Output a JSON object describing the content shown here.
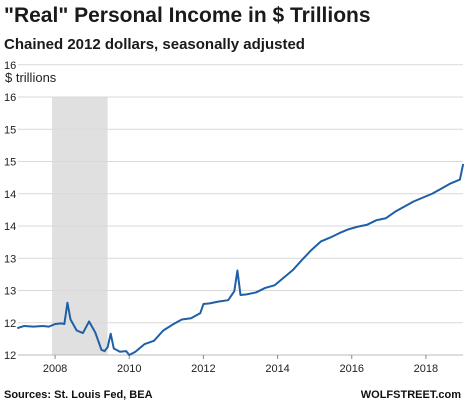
{
  "chart_data": {
    "type": "line",
    "title": "\"Real\" Personal Income in $ Trillions",
    "subtitle": "Chained 2012 dollars, seasonally adjusted",
    "ylabel": "$ trillions",
    "xlabel": "",
    "ylim": [
      12,
      16
    ],
    "xlim": [
      "2007-01",
      "2019-01"
    ],
    "y_ticks": [
      {
        "value": 12,
        "label": "12"
      },
      {
        "value": 12.5,
        "label": "12"
      },
      {
        "value": 13,
        "label": "13"
      },
      {
        "value": 13.5,
        "label": "13"
      },
      {
        "value": 14,
        "label": "14"
      },
      {
        "value": 14.5,
        "label": "14"
      },
      {
        "value": 15,
        "label": "15"
      },
      {
        "value": 15.5,
        "label": "15"
      },
      {
        "value": 16,
        "label": "16"
      },
      {
        "value": 16.5,
        "label": "16"
      }
    ],
    "x_ticks": [
      {
        "value": "2008-01",
        "label": "2008"
      },
      {
        "value": "2010-01",
        "label": "2010"
      },
      {
        "value": "2012-01",
        "label": "2012"
      },
      {
        "value": "2014-01",
        "label": "2014"
      },
      {
        "value": "2016-01",
        "label": "2016"
      },
      {
        "value": "2018-01",
        "label": "2018"
      }
    ],
    "shaded_periods": [
      {
        "start": "2007-12",
        "end": "2009-06",
        "color": "#e0e0e0"
      }
    ],
    "grid": true,
    "grid_axis": "y",
    "series": [
      {
        "color": "#1f5fa6",
        "points": [
          [
            "2007-01",
            12.42
          ],
          [
            "2007-03",
            12.45
          ],
          [
            "2007-06",
            12.44
          ],
          [
            "2007-09",
            12.45
          ],
          [
            "2007-11",
            12.44
          ],
          [
            "2008-01",
            12.48
          ],
          [
            "2008-03",
            12.49
          ],
          [
            "2008-04",
            12.48
          ],
          [
            "2008-05",
            12.81
          ],
          [
            "2008-06",
            12.55
          ],
          [
            "2008-08",
            12.38
          ],
          [
            "2008-10",
            12.34
          ],
          [
            "2008-12",
            12.52
          ],
          [
            "2009-02",
            12.35
          ],
          [
            "2009-04",
            12.08
          ],
          [
            "2009-05",
            12.06
          ],
          [
            "2009-06",
            12.12
          ],
          [
            "2009-07",
            12.33
          ],
          [
            "2009-08",
            12.1
          ],
          [
            "2009-10",
            12.05
          ],
          [
            "2009-12",
            12.06
          ],
          [
            "2010-01",
            12.0
          ],
          [
            "2010-03",
            12.05
          ],
          [
            "2010-06",
            12.17
          ],
          [
            "2010-09",
            12.22
          ],
          [
            "2010-12",
            12.38
          ],
          [
            "2011-03",
            12.47
          ],
          [
            "2011-06",
            12.55
          ],
          [
            "2011-09",
            12.57
          ],
          [
            "2011-12",
            12.65
          ],
          [
            "2012-01",
            12.79
          ],
          [
            "2012-03",
            12.8
          ],
          [
            "2012-06",
            12.83
          ],
          [
            "2012-09",
            12.85
          ],
          [
            "2012-11",
            12.99
          ],
          [
            "2012-12",
            13.31
          ],
          [
            "2013-01",
            12.93
          ],
          [
            "2013-03",
            12.94
          ],
          [
            "2013-06",
            12.97
          ],
          [
            "2013-09",
            13.04
          ],
          [
            "2013-12",
            13.08
          ],
          [
            "2014-03",
            13.2
          ],
          [
            "2014-06",
            13.32
          ],
          [
            "2014-09",
            13.48
          ],
          [
            "2014-12",
            13.63
          ],
          [
            "2015-03",
            13.76
          ],
          [
            "2015-06",
            13.82
          ],
          [
            "2015-09",
            13.89
          ],
          [
            "2015-12",
            13.95
          ],
          [
            "2016-03",
            13.99
          ],
          [
            "2016-06",
            14.02
          ],
          [
            "2016-09",
            14.09
          ],
          [
            "2016-12",
            14.12
          ],
          [
            "2017-03",
            14.22
          ],
          [
            "2017-06",
            14.3
          ],
          [
            "2017-09",
            14.38
          ],
          [
            "2017-12",
            14.44
          ],
          [
            "2018-03",
            14.5
          ],
          [
            "2018-06",
            14.58
          ],
          [
            "2018-09",
            14.66
          ],
          [
            "2018-12",
            14.72
          ],
          [
            "2019-01",
            14.95
          ]
        ]
      }
    ]
  },
  "footer": {
    "source": "Sources: St. Louis Fed, BEA",
    "brand": "WOLFSTREET.com"
  }
}
